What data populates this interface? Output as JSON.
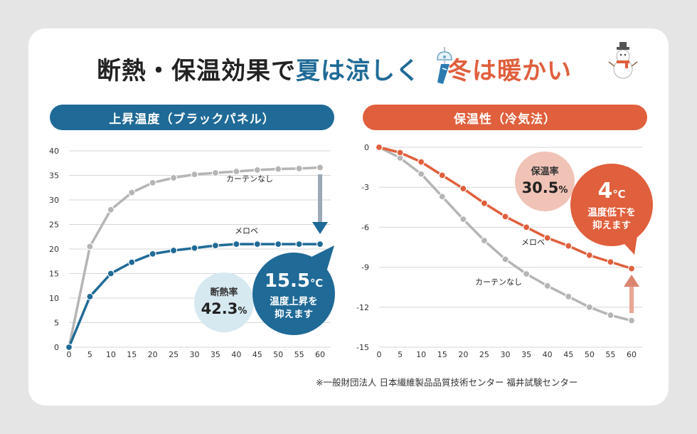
{
  "headline": {
    "part1": "断熱・保温効果で",
    "part2": "夏は涼しく",
    "part3": "冬は暖かい"
  },
  "icons": {
    "summer": "wind-chime-icon",
    "winter": "snowman-icon"
  },
  "colors": {
    "blue": "#1f6a96",
    "red": "#e05f3c",
    "gray": "#b5b5b5",
    "light_blue": "#d6e9f1",
    "light_red": "#f0c3b6",
    "grid": "#d6d6d6"
  },
  "footnote": "※一般財団法人 日本繊維製品品質技術センター 福井試験センター",
  "chart_data": [
    {
      "type": "line",
      "title": "上昇温度（ブラックパネル）",
      "x": [
        0,
        5,
        10,
        15,
        20,
        25,
        30,
        35,
        40,
        45,
        50,
        55,
        60
      ],
      "ylim": [
        0,
        40
      ],
      "yticks": [
        0,
        5,
        10,
        15,
        20,
        25,
        30,
        35,
        40
      ],
      "grid": true,
      "series": [
        {
          "name": "カーテンなし",
          "values": [
            0,
            20.5,
            28,
            31.5,
            33.5,
            34.5,
            35.2,
            35.5,
            35.8,
            36.1,
            36.3,
            36.4,
            36.6
          ]
        },
        {
          "name": "メロベ",
          "values": [
            0,
            10.3,
            15,
            17.3,
            19,
            19.7,
            20.2,
            20.7,
            21,
            21,
            21,
            21,
            21
          ]
        }
      ],
      "badges": {
        "small": {
          "label": "断熱率",
          "value": "42.3",
          "unit": "%"
        },
        "big": {
          "value": "15.5",
          "unit": "℃",
          "line1": "温度上昇を",
          "line2": "抑えます"
        }
      }
    },
    {
      "type": "line",
      "title": "保温性（冷気法）",
      "x": [
        0,
        5,
        10,
        15,
        20,
        25,
        30,
        35,
        40,
        45,
        50,
        55,
        60
      ],
      "ylim": [
        -15,
        0
      ],
      "yticks": [
        0,
        -3,
        -6,
        -9,
        -12,
        -15
      ],
      "grid": true,
      "series": [
        {
          "name": "カーテンなし",
          "values": [
            0,
            -0.8,
            -2,
            -3.7,
            -5.4,
            -7,
            -8.4,
            -9.5,
            -10.4,
            -11.2,
            -12,
            -12.6,
            -13
          ]
        },
        {
          "name": "メロベ",
          "values": [
            0,
            -0.4,
            -1.1,
            -2.1,
            -3.1,
            -4.2,
            -5.2,
            -6,
            -6.8,
            -7.4,
            -8.1,
            -8.6,
            -9.1
          ]
        }
      ],
      "badges": {
        "small": {
          "label": "保温率",
          "value": "30.5",
          "unit": "%"
        },
        "big": {
          "value": "4",
          "unit": "℃",
          "line1": "温度低下を",
          "line2": "抑えます"
        }
      }
    }
  ]
}
